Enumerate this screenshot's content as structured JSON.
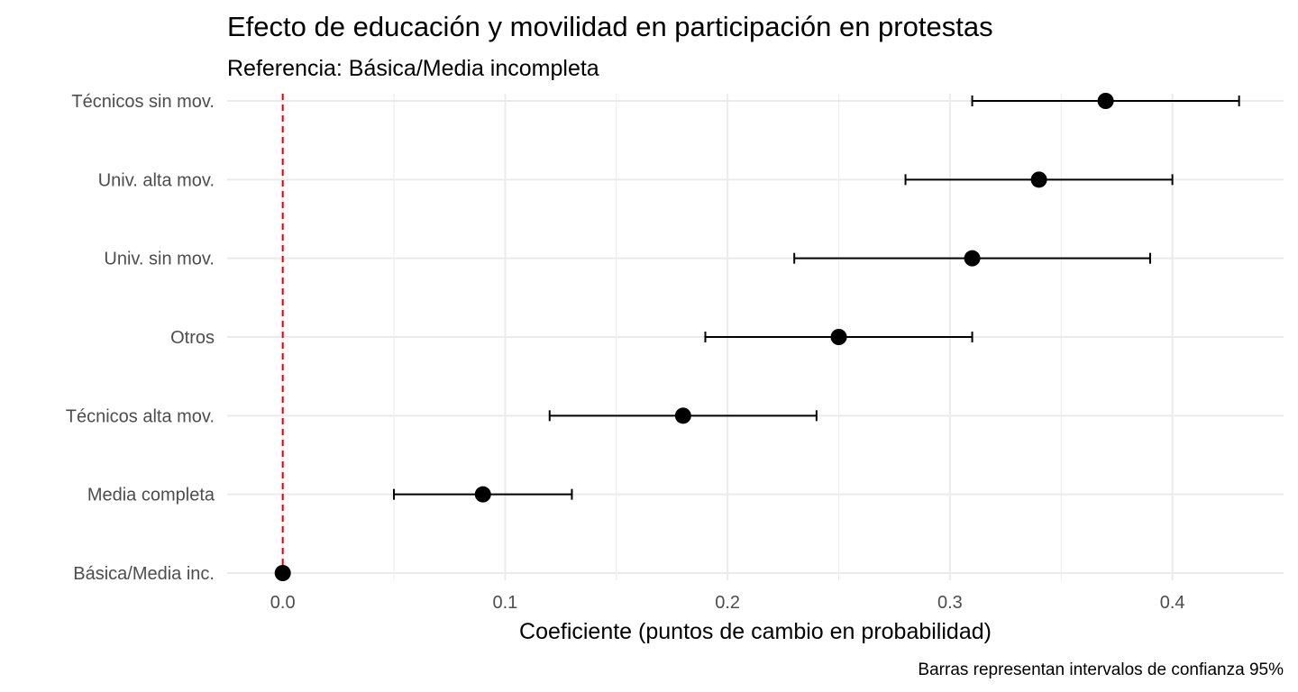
{
  "chart_data": {
    "type": "scatter",
    "subtype": "coefficient-plot-with-error-bars",
    "title": "Efecto de educación y movilidad en participación en protestas",
    "subtitle": "Referencia: Básica/Media incompleta",
    "xlabel": "Coeficiente (puntos de cambio en probabilidad)",
    "ylabel": "",
    "caption": "Barras representan intervalos de confianza 95%",
    "xlim": [
      -0.025,
      0.45
    ],
    "x_ticks": [
      0.0,
      0.1,
      0.2,
      0.3,
      0.4
    ],
    "x_tick_labels": [
      "0.0",
      "0.1",
      "0.2",
      "0.3",
      "0.4"
    ],
    "x_minor_ticks": [
      0.05,
      0.15,
      0.25,
      0.35
    ],
    "grid": true,
    "reference_line": {
      "x": 0,
      "style": "dashed",
      "color": "#e8000b"
    },
    "point_color": "#000000",
    "categories": [
      "Básica/Media inc.",
      "Media completa",
      "Técnicos alta mov.",
      "Otros",
      "Univ. sin mov.",
      "Univ. alta mov.",
      "Técnicos sin mov."
    ],
    "series": [
      {
        "name": "Coeficiente",
        "values": [
          0.0,
          0.09,
          0.18,
          0.25,
          0.31,
          0.34,
          0.37
        ],
        "ci_low": [
          0.0,
          0.05,
          0.12,
          0.19,
          0.23,
          0.28,
          0.31
        ],
        "ci_high": [
          0.0,
          0.13,
          0.24,
          0.31,
          0.39,
          0.4,
          0.43
        ]
      }
    ]
  }
}
